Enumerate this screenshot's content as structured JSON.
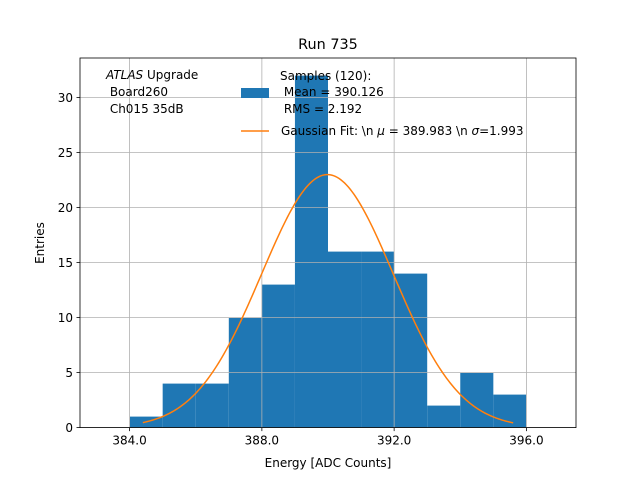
{
  "chart_data": {
    "type": "bar",
    "title": "Run 735",
    "xlabel": "Energy [ADC Counts]",
    "ylabel": "Entries",
    "xlim": [
      382.5,
      397.5
    ],
    "ylim": [
      0,
      33.6
    ],
    "xticks": [
      384,
      388,
      392,
      396
    ],
    "xtick_labels": [
      "384.0",
      "388.0",
      "392.0",
      "396.0"
    ],
    "yticks": [
      0,
      5,
      10,
      15,
      20,
      25,
      30
    ],
    "ytick_labels": [
      "0",
      "5",
      "10",
      "15",
      "20",
      "25",
      "30"
    ],
    "grid": true,
    "histogram": {
      "name": "Samples (120):",
      "mean_label": " Mean = 390.126",
      "rms_label": " RMS = 2.192",
      "bin_edges": [
        384,
        385,
        386,
        387,
        388,
        389,
        390,
        391,
        392,
        393,
        394,
        395,
        396
      ],
      "counts": [
        1,
        4,
        4,
        10,
        13,
        32,
        16,
        16,
        14,
        2,
        5,
        3
      ],
      "color": "#1f77b4"
    },
    "fit": {
      "name": "Gaussian Fit: \\n $\\mu$ = 389.983 \\n $\\sigma$=1.993",
      "label_prefix": "Gaussian Fit: \\n ",
      "mu_symbol": "μ",
      "label_middle": " = 389.983 \\n ",
      "sigma_symbol": "σ",
      "label_suffix": "=1.993",
      "mu": 389.983,
      "sigma": 1.993,
      "amplitude": 23.0,
      "x_range": [
        384.4,
        395.6
      ],
      "color": "#ff7f0e"
    },
    "annotation": {
      "atlas": "ATLAS",
      "upgrade": " Upgrade",
      "line2": " Board260",
      "line3": " Ch015 35dB"
    },
    "legend_position": "top-right"
  }
}
